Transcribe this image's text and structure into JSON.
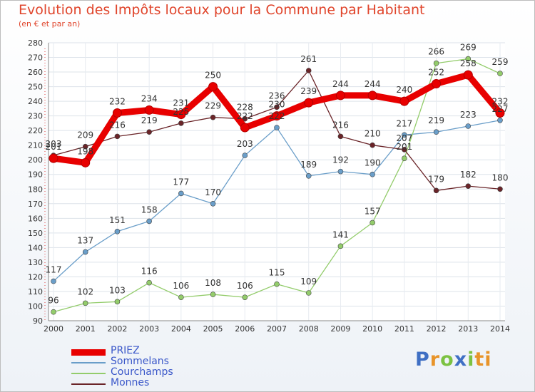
{
  "header": {
    "title": "Evolution des Impôts locaux pour la Commune par Habitant",
    "subtitle": "(en € et par an)"
  },
  "chart_data": {
    "type": "line",
    "title": "Evolution des Impôts locaux pour la Commune par Habitant",
    "subtitle": "(en € et par an)",
    "x": [
      2000,
      2001,
      2002,
      2003,
      2004,
      2005,
      2006,
      2007,
      2008,
      2009,
      2010,
      2011,
      2012,
      2013,
      2014
    ],
    "ylim": [
      90,
      280
    ],
    "yticks": [
      90,
      100,
      110,
      120,
      130,
      140,
      150,
      160,
      170,
      180,
      190,
      200,
      210,
      220,
      230,
      240,
      250,
      260,
      270,
      280
    ],
    "grid": true,
    "legend_position": "bottom-left",
    "series": [
      {
        "name": "PRIEZ",
        "color": "#e80000",
        "values": [
          201,
          198,
          232,
          234,
          231,
          250,
          222,
          230,
          239,
          244,
          244,
          240,
          252,
          258,
          232
        ]
      },
      {
        "name": "Sommelans",
        "color": "#6a9ec9",
        "values": [
          117,
          137,
          151,
          158,
          177,
          170,
          203,
          222,
          189,
          192,
          190,
          217,
          219,
          223,
          227
        ]
      },
      {
        "name": "Courchamps",
        "color": "#93cc6b",
        "values": [
          96,
          102,
          103,
          116,
          106,
          108,
          106,
          115,
          109,
          141,
          157,
          201,
          266,
          269,
          259
        ]
      },
      {
        "name": "Monnes",
        "color": "#6a2428",
        "values": [
          203,
          209,
          216,
          219,
          225,
          229,
          228,
          236,
          261,
          216,
          210,
          207,
          179,
          182,
          180
        ]
      }
    ]
  },
  "logo": {
    "letters": [
      "P",
      "r",
      "o",
      "x",
      "i",
      "t",
      "i"
    ],
    "colors": [
      "#3f6fc4",
      "#e8942a",
      "#7cc242",
      "#3f6fc4",
      "#7cc242",
      "#e8942a",
      "#e8942a"
    ]
  }
}
